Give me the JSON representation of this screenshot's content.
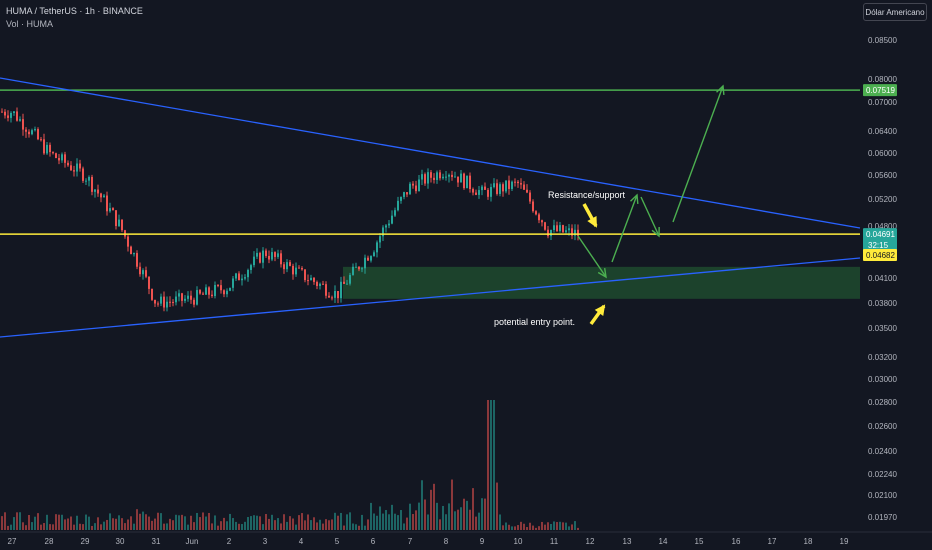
{
  "header": {
    "title": "HUMA / TetherUS · 1h · BINANCE",
    "volume_label": "Vol · HUMA"
  },
  "currency_button": "Dólar Americano",
  "price_axis": {
    "ticks": [
      "0.08500",
      "0.08000",
      "0.07000",
      "0.06400",
      "0.06000",
      "0.05600",
      "0.05200",
      "0.04800",
      "0.04100",
      "0.03800",
      "0.03500",
      "0.03200",
      "0.03000",
      "0.02800",
      "0.02600",
      "0.02400",
      "0.02240",
      "0.02100",
      "0.01970"
    ],
    "current_price": "0.04691",
    "countdown": "32:15",
    "level_price": "0.04682",
    "target_price": "0.07519"
  },
  "time_axis": {
    "labels": [
      "27",
      "28",
      "29",
      "30",
      "31",
      "Jun",
      "2",
      "3",
      "4",
      "5",
      "6",
      "7",
      "8",
      "9",
      "10",
      "11",
      "12",
      "13",
      "14",
      "15",
      "16",
      "17",
      "18",
      "19"
    ]
  },
  "annotations": {
    "resistance": "Resistance/support",
    "entry": "potential entry point."
  },
  "colors": {
    "background": "#131722",
    "up": "#26a69a",
    "down": "#ef5350",
    "trendline": "#2962ff",
    "yellow_line": "#ffeb3b",
    "green_line": "#4caf50",
    "zone_fill": "#1e4a2e",
    "arrow_green": "#4caf50",
    "arrow_yellow": "#ffeb3b"
  },
  "chart_data": {
    "type": "candlestick",
    "symbol": "HUMA / TetherUS",
    "interval": "1h",
    "exchange": "BINANCE",
    "price_series": [
      {
        "x": "27",
        "y": 0.068
      },
      {
        "x": "28",
        "y": 0.06
      },
      {
        "x": "29",
        "y": 0.056
      },
      {
        "x": "30",
        "y": 0.048
      },
      {
        "x": "31",
        "y": 0.038
      },
      {
        "x": "Jun",
        "y": 0.0385
      },
      {
        "x": "2",
        "y": 0.04
      },
      {
        "x": "3",
        "y": 0.0445
      },
      {
        "x": "4",
        "y": 0.0415
      },
      {
        "x": "5",
        "y": 0.039
      },
      {
        "x": "6",
        "y": 0.045
      },
      {
        "x": "7",
        "y": 0.054
      },
      {
        "x": "8",
        "y": 0.057
      },
      {
        "x": "9",
        "y": 0.053
      },
      {
        "x": "10",
        "y": 0.0545
      },
      {
        "x": "11",
        "y": 0.0475
      },
      {
        "x": "11",
        "y": 0.0469
      }
    ],
    "horizontal_levels": [
      0.07519,
      0.04691
    ],
    "demand_zone": [
      0.0385,
      0.0425
    ]
  }
}
